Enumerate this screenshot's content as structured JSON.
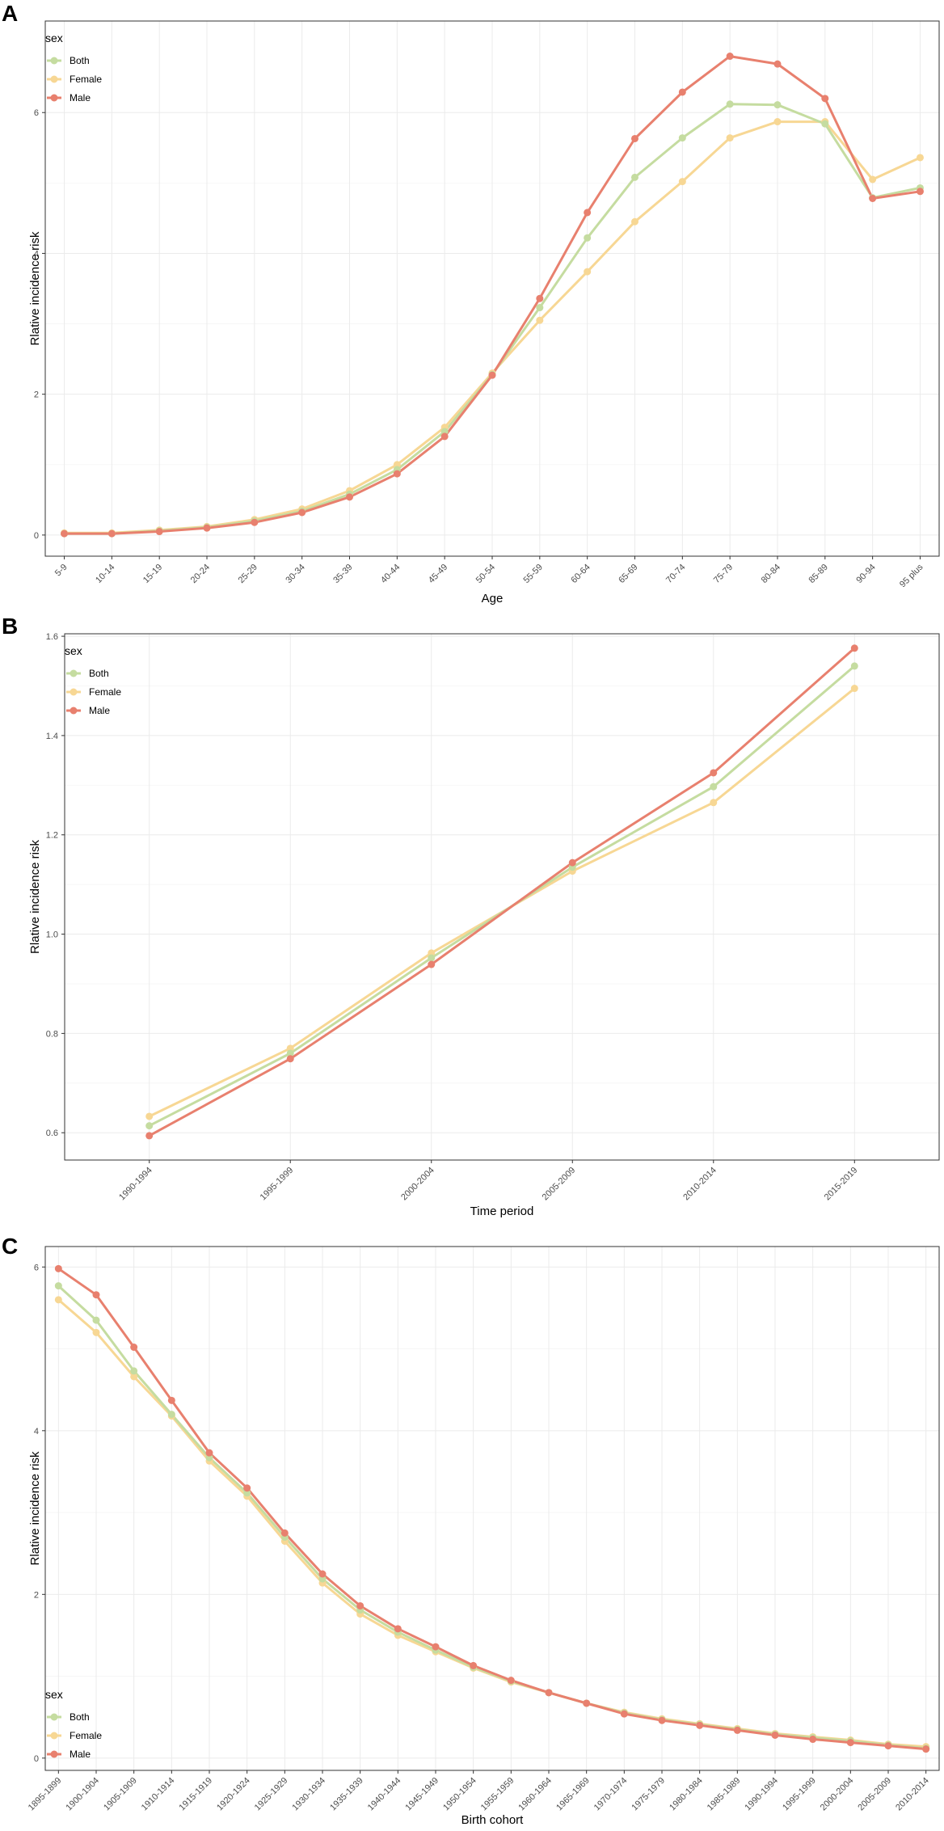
{
  "colors": {
    "Both": "#c5dca0",
    "Female": "#f7d794",
    "Male": "#e8806e",
    "grid_major": "#ebebeb",
    "grid_minor": "#f5f5f5",
    "frame": "#333333"
  },
  "chart_data": [
    {
      "panel": "A",
      "type": "line",
      "xlabel": "Age",
      "ylabel": "Rlative incidence risk",
      "ylim": [
        -0.3,
        7.3
      ],
      "yticks": [
        0,
        2,
        4,
        6
      ],
      "grid": true,
      "legend": {
        "title": "sex",
        "position": "top-left",
        "labels": [
          "Both",
          "Female",
          "Male"
        ]
      },
      "categories": [
        "5-9",
        "10-14",
        "15-19",
        "20-24",
        "25-29",
        "30-34",
        "35-39",
        "40-44",
        "45-49",
        "50-54",
        "55-59",
        "60-64",
        "65-69",
        "70-74",
        "75-79",
        "80-84",
        "85-89",
        "90-94",
        "95 plus"
      ],
      "series": [
        {
          "name": "Both",
          "values": [
            0.02,
            0.02,
            0.06,
            0.11,
            0.2,
            0.34,
            0.58,
            0.93,
            1.47,
            2.28,
            3.23,
            4.22,
            5.08,
            5.64,
            6.12,
            6.11,
            5.84,
            4.79,
            4.93
          ]
        },
        {
          "name": "Female",
          "values": [
            0.03,
            0.03,
            0.07,
            0.12,
            0.22,
            0.37,
            0.63,
            1.0,
            1.53,
            2.3,
            3.05,
            3.74,
            4.45,
            5.02,
            5.64,
            5.87,
            5.87,
            5.05,
            5.36
          ]
        },
        {
          "name": "Male",
          "values": [
            0.02,
            0.02,
            0.05,
            0.1,
            0.18,
            0.32,
            0.54,
            0.87,
            1.4,
            2.27,
            3.36,
            4.58,
            5.63,
            6.29,
            6.8,
            6.69,
            6.2,
            4.78,
            4.88
          ]
        }
      ]
    },
    {
      "panel": "B",
      "type": "line",
      "xlabel": "Time period",
      "ylabel": "Rlative incidence risk",
      "ylim": [
        0.545,
        1.605
      ],
      "yticks": [
        0.6,
        0.8,
        1.0,
        1.2,
        1.4,
        1.6
      ],
      "ytick_labels": [
        "0.6",
        "0.8",
        "1.0",
        "1.2",
        "1.4",
        "1.6"
      ],
      "grid": true,
      "legend": {
        "title": "sex",
        "position": "top-left",
        "labels": [
          "Both",
          "Female",
          "Male"
        ]
      },
      "categories": [
        "1990-1994",
        "1995-1999",
        "2000-2004",
        "2005-2009",
        "2010-2014",
        "2015-2019"
      ],
      "series": [
        {
          "name": "Both",
          "values": [
            0.614,
            0.76,
            0.952,
            1.135,
            1.297,
            1.54
          ]
        },
        {
          "name": "Female",
          "values": [
            0.633,
            0.77,
            0.962,
            1.127,
            1.265,
            1.495
          ]
        },
        {
          "name": "Male",
          "values": [
            0.594,
            0.749,
            0.939,
            1.144,
            1.325,
            1.576
          ]
        }
      ]
    },
    {
      "panel": "C",
      "type": "line",
      "xlabel": "Birth cohort",
      "ylabel": "Rlative incidence risk",
      "ylim": [
        -0.15,
        6.25
      ],
      "yticks": [
        0,
        2,
        4,
        6
      ],
      "grid": true,
      "legend": {
        "title": "sex",
        "position": "bottom-left",
        "labels": [
          "Both",
          "Female",
          "Male"
        ]
      },
      "categories": [
        "1895-1899",
        "1900-1904",
        "1905-1909",
        "1910-1914",
        "1915-1919",
        "1920-1924",
        "1925-1929",
        "1930-1934",
        "1935-1939",
        "1940-1944",
        "1945-1949",
        "1950-1954",
        "1955-1959",
        "1960-1964",
        "1965-1969",
        "1970-1974",
        "1975-1979",
        "1980-1984",
        "1985-1989",
        "1990-1994",
        "1995-1999",
        "2000-2004",
        "2005-2009",
        "2010-2014"
      ],
      "series": [
        {
          "name": "Both",
          "values": [
            5.77,
            5.35,
            4.73,
            4.2,
            3.67,
            3.24,
            2.7,
            2.19,
            1.81,
            1.54,
            1.32,
            1.11,
            0.94,
            0.8,
            0.67,
            0.55,
            0.47,
            0.41,
            0.35,
            0.29,
            0.25,
            0.21,
            0.16,
            0.12
          ]
        },
        {
          "name": "Female",
          "values": [
            5.6,
            5.2,
            4.66,
            4.18,
            3.63,
            3.2,
            2.65,
            2.14,
            1.76,
            1.5,
            1.3,
            1.1,
            0.93,
            0.8,
            0.67,
            0.56,
            0.48,
            0.42,
            0.36,
            0.3,
            0.26,
            0.22,
            0.17,
            0.14
          ]
        },
        {
          "name": "Male",
          "values": [
            5.98,
            5.66,
            5.02,
            4.37,
            3.73,
            3.3,
            2.75,
            2.25,
            1.86,
            1.58,
            1.36,
            1.13,
            0.95,
            0.8,
            0.67,
            0.54,
            0.46,
            0.4,
            0.34,
            0.28,
            0.23,
            0.19,
            0.15,
            0.11
          ]
        }
      ]
    }
  ]
}
